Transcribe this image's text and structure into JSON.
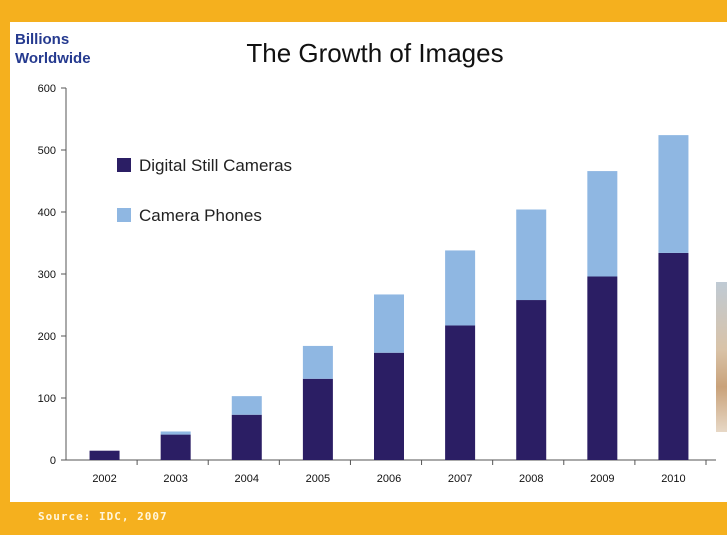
{
  "chart_data": {
    "type": "bar",
    "stacked": true,
    "title": "The Growth of Images",
    "ylabel": "Billions\nWorldwide",
    "xlabel": "",
    "ylim": [
      0,
      600
    ],
    "yticks": [
      0,
      100,
      200,
      300,
      400,
      500,
      600
    ],
    "grid": false,
    "legend_position": "upper-left",
    "categories": [
      "2002",
      "2003",
      "2004",
      "2005",
      "2006",
      "2007",
      "2008",
      "2009",
      "2010"
    ],
    "series": [
      {
        "name": "Digital Still Cameras",
        "color": "#2b1e64",
        "values": [
          15,
          41,
          73,
          131,
          173,
          217,
          258,
          296,
          334
        ]
      },
      {
        "name": "Camera Phones",
        "color": "#8fb7e2",
        "values": [
          0,
          5,
          30,
          53,
          94,
          121,
          146,
          170,
          190
        ]
      }
    ],
    "source": "Source: IDC, 2007"
  }
}
